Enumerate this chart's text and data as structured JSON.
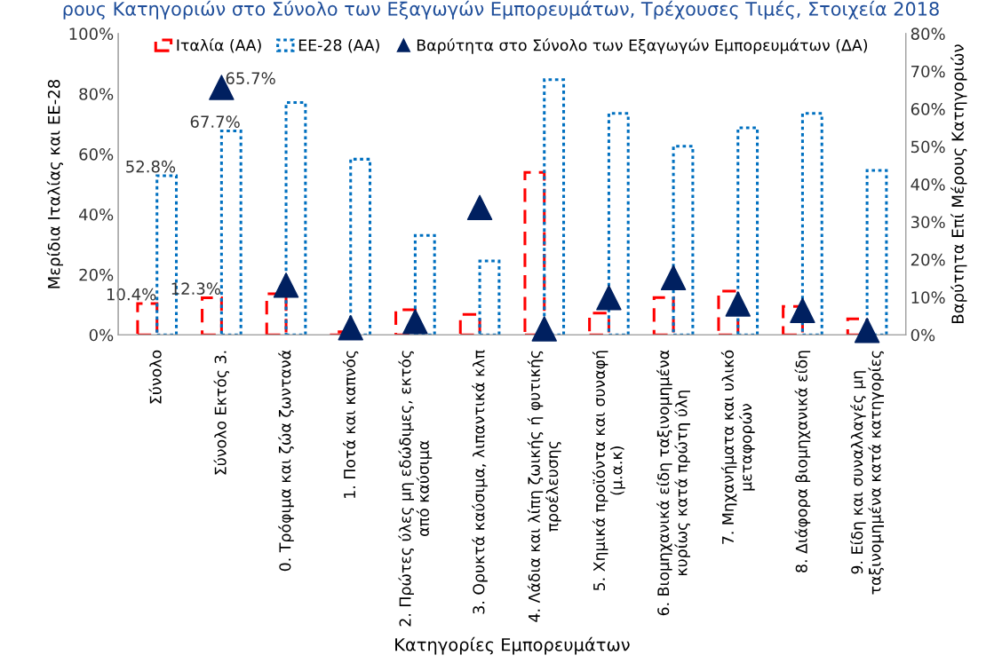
{
  "chart_data": {
    "type": "bar",
    "title": "ρους Κατηγοριών στο Σύνολο των Εξαγωγών Εμπορευμάτων, Τρέχουσες Τιμές, Στοιχεία 2018",
    "xlabel": "Κατηγορίες Εμπορευμάτων",
    "ylabel": "Μερίδια Ιταλίας και ΕΕ-28",
    "y2label": "Βαρύτητα Επί Μέρους Κατηγοριών",
    "categories": [
      "Σύνολο",
      "Σύνολο Εκτός 3.",
      "0. Τρόφιμα και ζώα ζωντανά",
      "1. Ποτά και καπνός",
      "2. Πρώτες ύλες μη εδώδιμες, εκτός\nαπό καύσιμα",
      "3. Ορυκτά καύσιμα, λιπαντικά κλπ",
      "4. Λάδια και λίπη ζωικής ή φυτικής\nπροέλευσης",
      "5. Χημικά προϊόντα και συναφή\n(μ.α.κ)",
      "6. Βιομηχανικά είδη ταξινομημένα\nκυρίως κατά πρώτη ύλη",
      "7. Μηχανήματα και υλικό\nμεταφορών",
      "8. Διάφορα βιομηχανικά είδη",
      "9. Είδη και συναλλαγές μη\nταξινομημένα κατά κατηγορίες"
    ],
    "series": [
      {
        "name": "Ιταλία (ΑΑ)",
        "color": "#ff0000",
        "line_style": "dashed",
        "values": [
          10.4,
          12.3,
          13.6,
          1.0,
          8.3,
          6.8,
          53.9,
          7.2,
          12.4,
          14.5,
          9.4,
          5.3
        ],
        "value_labels": [
          "10.4%",
          "12.3%",
          null,
          null,
          null,
          null,
          null,
          null,
          null,
          null,
          null,
          null
        ]
      },
      {
        "name": "ΕΕ-28 (ΑΑ)",
        "color": "#0070c0",
        "line_style": "dotted",
        "values": [
          52.8,
          67.7,
          77.1,
          58.3,
          33.0,
          24.5,
          84.7,
          73.5,
          62.6,
          68.7,
          73.5,
          54.6
        ],
        "value_labels": [
          "52.8%",
          "67.7%",
          null,
          null,
          null,
          null,
          null,
          null,
          null,
          null,
          null,
          null
        ]
      },
      {
        "name": "Βαρύτητα στο Σύνολο των Εξαγωγών Εμπορευμάτων (ΔΑ)",
        "type": "scatter",
        "axis": "y2",
        "marker": "triangle",
        "color": "#002060",
        "values": [
          null,
          65.7,
          13.2,
          1.9,
          3.5,
          33.8,
          1.6,
          9.9,
          15.2,
          8.2,
          6.5,
          1.2
        ],
        "value_labels": [
          null,
          "65.7%",
          null,
          null,
          null,
          null,
          null,
          null,
          null,
          null,
          null,
          null
        ]
      }
    ],
    "ylim": [
      0,
      100
    ],
    "yticks": [
      {
        "value": 0,
        "label": "0%"
      },
      {
        "value": 20,
        "label": "20%"
      },
      {
        "value": 40,
        "label": "40%"
      },
      {
        "value": 60,
        "label": "60%"
      },
      {
        "value": 80,
        "label": "80%"
      },
      {
        "value": 100,
        "label": "100%"
      }
    ],
    "y2lim": [
      0,
      80
    ],
    "y2ticks": [
      {
        "value": 0,
        "label": "0%"
      },
      {
        "value": 10,
        "label": "10%"
      },
      {
        "value": 20,
        "label": "20%"
      },
      {
        "value": 30,
        "label": "30%"
      },
      {
        "value": 40,
        "label": "40%"
      },
      {
        "value": 50,
        "label": "50%"
      },
      {
        "value": 60,
        "label": "60%"
      },
      {
        "value": 70,
        "label": "70%"
      },
      {
        "value": 80,
        "label": "80%"
      }
    ],
    "grid": false,
    "legend": "top"
  }
}
